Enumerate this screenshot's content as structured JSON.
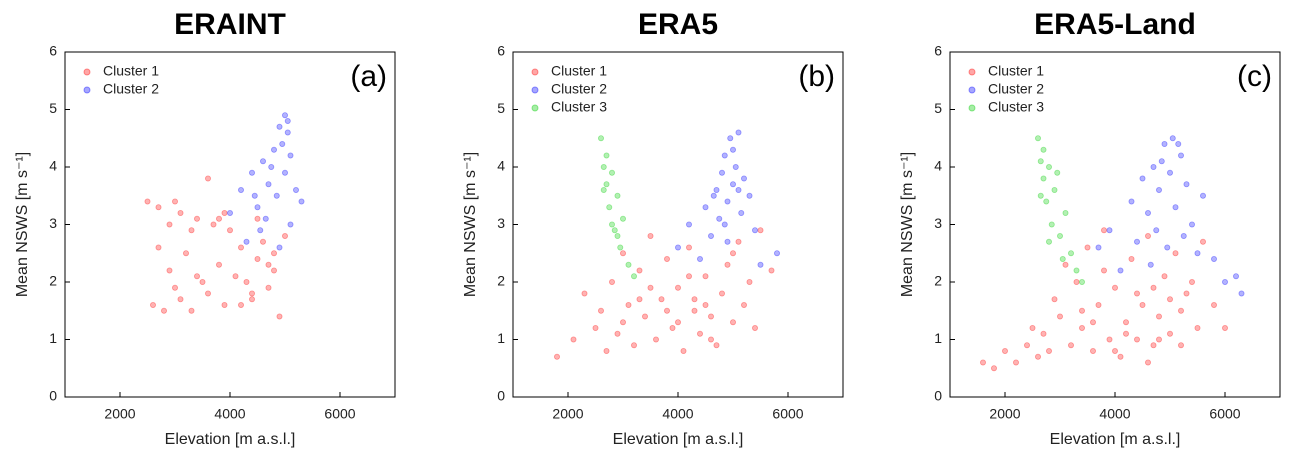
{
  "chart_data": [
    {
      "type": "scatter",
      "title": "ERAINT",
      "xlabel": "Elevation [m a.s.l.]",
      "ylabel": "Mean NSWS [m s⁻¹]",
      "annotation": "(a)",
      "xlim": [
        1000,
        7000
      ],
      "ylim": [
        0,
        6
      ],
      "xticks": [
        2000,
        4000,
        6000
      ],
      "yticks": [
        0,
        1,
        2,
        3,
        4,
        5,
        6
      ],
      "legend": "upper left",
      "series": [
        {
          "name": "Cluster 1",
          "color": "#ff0000",
          "x": [
            2500,
            2600,
            2700,
            2800,
            2900,
            3000,
            3100,
            3200,
            3300,
            3400,
            3500,
            3600,
            3700,
            3800,
            3900,
            4000,
            4100,
            4200,
            4300,
            4400,
            4500,
            4600,
            4700,
            4800,
            4900,
            5000,
            2700,
            3000,
            3300,
            3600,
            3900,
            4200,
            4500,
            4800,
            2900,
            3400,
            3800,
            4400,
            4700,
            3100
          ],
          "y": [
            3.4,
            1.6,
            3.3,
            1.5,
            2.2,
            3.4,
            1.7,
            2.5,
            1.5,
            3.1,
            2.0,
            3.8,
            3.0,
            2.3,
            1.6,
            2.9,
            2.1,
            2.6,
            2.0,
            1.8,
            2.4,
            2.7,
            1.9,
            2.5,
            1.4,
            2.8,
            2.6,
            1.9,
            2.9,
            1.8,
            3.2,
            1.6,
            3.1,
            2.2,
            3.0,
            2.1,
            3.1,
            1.7,
            2.3,
            3.2
          ]
        },
        {
          "name": "Cluster 2",
          "color": "#0000ff",
          "x": [
            4000,
            4200,
            4300,
            4400,
            4500,
            4600,
            4700,
            4800,
            4900,
            5000,
            5050,
            5100,
            5200,
            5300,
            4650,
            4750,
            4850,
            4950,
            5000,
            5100,
            4900,
            5050,
            4550,
            4450
          ],
          "y": [
            3.2,
            3.6,
            2.7,
            3.9,
            3.3,
            4.1,
            3.7,
            4.3,
            4.7,
            4.9,
            4.6,
            4.2,
            3.6,
            3.4,
            3.1,
            4.0,
            3.5,
            4.4,
            3.9,
            3.0,
            2.6,
            4.8,
            2.9,
            3.5
          ]
        }
      ]
    },
    {
      "type": "scatter",
      "title": "ERA5",
      "xlabel": "Elevation [m a.s.l.]",
      "ylabel": "Mean NSWS [m s⁻¹]",
      "annotation": "(b)",
      "xlim": [
        1000,
        7000
      ],
      "ylim": [
        0,
        6
      ],
      "xticks": [
        2000,
        4000,
        6000
      ],
      "yticks": [
        0,
        1,
        2,
        3,
        4,
        5,
        6
      ],
      "legend": "upper left",
      "series": [
        {
          "name": "Cluster 1",
          "color": "#ff0000",
          "x": [
            1800,
            2100,
            2300,
            2500,
            2600,
            2800,
            2900,
            3000,
            3100,
            3200,
            3300,
            3400,
            3500,
            3600,
            3700,
            3800,
            3900,
            4000,
            4100,
            4200,
            4300,
            4400,
            4500,
            4600,
            4700,
            4800,
            4900,
            5000,
            5100,
            5200,
            5300,
            5400,
            5500,
            5700,
            3500,
            4000,
            4300,
            4600,
            3800,
            4200,
            3000,
            4500,
            5000,
            2700,
            3300
          ],
          "y": [
            0.7,
            1.0,
            1.8,
            1.2,
            1.5,
            2.0,
            1.1,
            2.5,
            1.6,
            0.9,
            2.2,
            1.4,
            2.8,
            1.0,
            1.7,
            2.4,
            1.2,
            1.9,
            0.8,
            2.6,
            1.5,
            1.1,
            2.1,
            1.4,
            0.9,
            1.8,
            2.3,
            1.3,
            2.7,
            1.6,
            2.0,
            1.2,
            2.9,
            2.2,
            1.9,
            1.3,
            1.7,
            1.0,
            1.5,
            2.1,
            1.3,
            1.6,
            2.5,
            0.8,
            1.7
          ]
        },
        {
          "name": "Cluster 2",
          "color": "#0000ff",
          "x": [
            4000,
            4200,
            4400,
            4500,
            4600,
            4700,
            4800,
            4850,
            4900,
            4950,
            5000,
            5050,
            5100,
            5150,
            5200,
            5300,
            5400,
            5500,
            5800,
            4750,
            4900,
            5000,
            5100,
            4650,
            4850
          ],
          "y": [
            2.6,
            3.0,
            2.4,
            3.3,
            2.8,
            3.6,
            3.9,
            4.2,
            3.4,
            4.5,
            3.7,
            4.0,
            4.6,
            3.2,
            3.8,
            3.5,
            2.9,
            2.3,
            2.5,
            3.1,
            2.7,
            4.3,
            3.6,
            3.5,
            3.0
          ]
        },
        {
          "name": "Cluster 3",
          "color": "#00cc00",
          "x": [
            2600,
            2650,
            2700,
            2750,
            2800,
            2850,
            2900,
            2950,
            3000,
            3100,
            3200,
            2700,
            2800,
            2650,
            2900
          ],
          "y": [
            4.5,
            4.0,
            3.7,
            3.3,
            3.9,
            2.9,
            3.5,
            2.6,
            3.1,
            2.3,
            2.1,
            4.2,
            3.0,
            3.6,
            2.8
          ]
        }
      ]
    },
    {
      "type": "scatter",
      "title": "ERA5-Land",
      "xlabel": "Elevation [m a.s.l.]",
      "ylabel": "Mean NSWS [m s⁻¹]",
      "annotation": "(c)",
      "xlim": [
        1000,
        7000
      ],
      "ylim": [
        0,
        6
      ],
      "xticks": [
        2000,
        4000,
        6000
      ],
      "yticks": [
        0,
        1,
        2,
        3,
        4,
        5,
        6
      ],
      "legend": "upper left",
      "series": [
        {
          "name": "Cluster 1",
          "color": "#ff0000",
          "x": [
            1600,
            1800,
            2000,
            2200,
            2400,
            2600,
            2700,
            2800,
            3000,
            3200,
            3300,
            3400,
            3500,
            3600,
            3700,
            3800,
            3900,
            4000,
            4100,
            4200,
            4300,
            4400,
            4500,
            4600,
            4700,
            4800,
            4900,
            5000,
            5100,
            5200,
            5300,
            5400,
            5500,
            5600,
            5800,
            6000,
            2900,
            3100,
            3600,
            4000,
            4400,
            4800,
            5200,
            3800,
            4200,
            4600,
            5000,
            3400,
            2500,
            4700
          ],
          "y": [
            0.6,
            0.5,
            0.8,
            0.6,
            0.9,
            0.7,
            1.1,
            0.8,
            1.4,
            0.9,
            2.0,
            1.2,
            2.6,
            0.8,
            1.6,
            2.2,
            1.0,
            1.9,
            0.7,
            1.3,
            2.4,
            1.0,
            1.6,
            2.8,
            0.9,
            1.4,
            2.1,
            1.1,
            2.5,
            1.5,
            1.8,
            2.0,
            1.2,
            2.7,
            1.6,
            1.2,
            1.7,
            2.3,
            1.3,
            0.8,
            1.8,
            1.0,
            0.9,
            2.9,
            1.1,
            0.6,
            1.7,
            1.5,
            1.2,
            1.9
          ]
        },
        {
          "name": "Cluster 2",
          "color": "#0000ff",
          "x": [
            3700,
            3900,
            4100,
            4300,
            4400,
            4500,
            4600,
            4700,
            4800,
            4900,
            5000,
            5050,
            5100,
            5200,
            5300,
            5400,
            5500,
            5600,
            5800,
            6000,
            6200,
            6300,
            4750,
            4950,
            5150,
            4650,
            4850,
            5250
          ],
          "y": [
            2.6,
            2.9,
            2.2,
            3.4,
            2.7,
            3.8,
            3.2,
            4.0,
            3.6,
            4.4,
            3.9,
            4.5,
            3.3,
            4.2,
            3.7,
            3.0,
            2.5,
            3.5,
            2.4,
            2.0,
            2.1,
            1.8,
            2.9,
            2.6,
            4.4,
            2.3,
            4.1,
            2.8
          ]
        },
        {
          "name": "Cluster 3",
          "color": "#00cc00",
          "x": [
            2600,
            2650,
            2700,
            2750,
            2800,
            2850,
            2900,
            3000,
            3100,
            3200,
            3300,
            3400,
            2700,
            2800,
            2650,
            2950,
            3050
          ],
          "y": [
            4.5,
            4.1,
            3.8,
            3.4,
            4.0,
            3.0,
            3.6,
            2.8,
            3.2,
            2.5,
            2.2,
            2.0,
            4.3,
            2.7,
            3.5,
            3.9,
            2.4
          ]
        }
      ]
    }
  ]
}
